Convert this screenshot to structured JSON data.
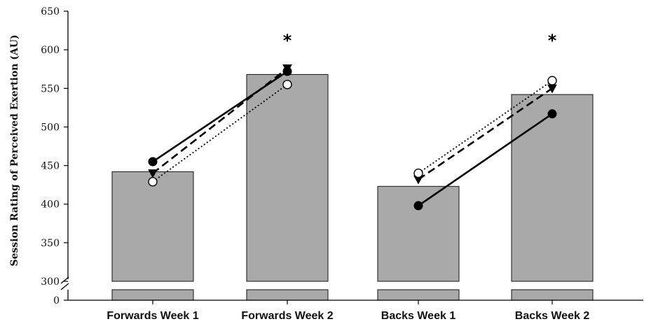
{
  "chart_data": {
    "type": "bar",
    "ylabel": "Session Rating of Perceived Exertion (AU)",
    "y_ticks_upper": [
      300,
      350,
      400,
      450,
      500,
      550,
      600,
      650
    ],
    "y_tick_zero": "0",
    "ylim": [
      300,
      650
    ],
    "axis_break": true,
    "categories": [
      "Forwards Week 1",
      "Forwards Week 2",
      "Backs Week 1",
      "Backs Week 2"
    ],
    "bar_values": [
      442,
      568,
      423,
      542
    ],
    "significance": [
      "",
      "*",
      "",
      "*"
    ],
    "overlay_series": [
      {
        "marker": "filled-circle",
        "line": "solid",
        "x": [
          "Forwards Week 1",
          "Forwards Week 2"
        ],
        "values": [
          455,
          572
        ]
      },
      {
        "marker": "filled-triangle-down",
        "line": "dashed",
        "x": [
          "Forwards Week 1",
          "Forwards Week 2"
        ],
        "values": [
          440,
          576
        ]
      },
      {
        "marker": "open-circle",
        "line": "dotted",
        "x": [
          "Forwards Week 1",
          "Forwards Week 2"
        ],
        "values": [
          429,
          555
        ]
      },
      {
        "marker": "filled-circle",
        "line": "solid",
        "x": [
          "Backs Week 1",
          "Backs Week 2"
        ],
        "values": [
          398,
          517
        ]
      },
      {
        "marker": "filled-triangle-down",
        "line": "dashed",
        "x": [
          "Backs Week 1",
          "Backs Week 2"
        ],
        "values": [
          432,
          550
        ]
      },
      {
        "marker": "open-circle",
        "line": "dotted",
        "x": [
          "Backs Week 1",
          "Backs Week 2"
        ],
        "values": [
          440,
          560
        ]
      }
    ],
    "grid": false,
    "colors": {
      "bar": "#a9a9a9",
      "line": "#000000"
    }
  }
}
